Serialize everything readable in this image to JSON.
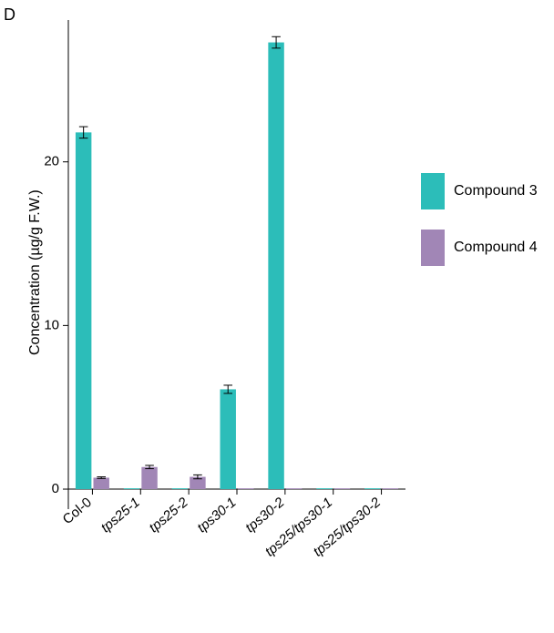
{
  "panel_label": "D",
  "chart": {
    "type": "bar",
    "categories": [
      "Col-0",
      "tps25-1",
      "tps25-2",
      "tps30-1",
      "tps30-2",
      "tps25/tps30-1",
      "tps25/tps30-2"
    ],
    "category_italic": [
      false,
      true,
      true,
      true,
      true,
      true,
      true
    ],
    "series": [
      {
        "name": "Compound 3",
        "color": "#2cbdb9",
        "values": [
          21.8,
          0.05,
          0.05,
          6.1,
          27.3,
          0.05,
          0.05
        ],
        "errors": [
          0.35,
          0,
          0,
          0.25,
          0.35,
          0,
          0
        ]
      },
      {
        "name": "Compound 4",
        "color": "#a186b6",
        "values": [
          0.7,
          1.35,
          0.75,
          0.05,
          0.05,
          0.05,
          0.05
        ],
        "errors": [
          0.05,
          0.1,
          0.12,
          0,
          0,
          0,
          0
        ]
      }
    ],
    "ylabel": "Concentration (µg/g F.W.)",
    "ylim": [
      -1,
      28.5
    ],
    "yticks": [
      0,
      10,
      20
    ],
    "bar_width": 0.33,
    "bar_gap": 0.04,
    "background": "#ffffff",
    "axis_color": "#000000",
    "font_family": "Arial",
    "label_fontsize": 15,
    "ylabel_fontsize": 16,
    "legend_fontsize": 16,
    "legend_swatch_w": 26,
    "legend_swatch_h": 40
  }
}
